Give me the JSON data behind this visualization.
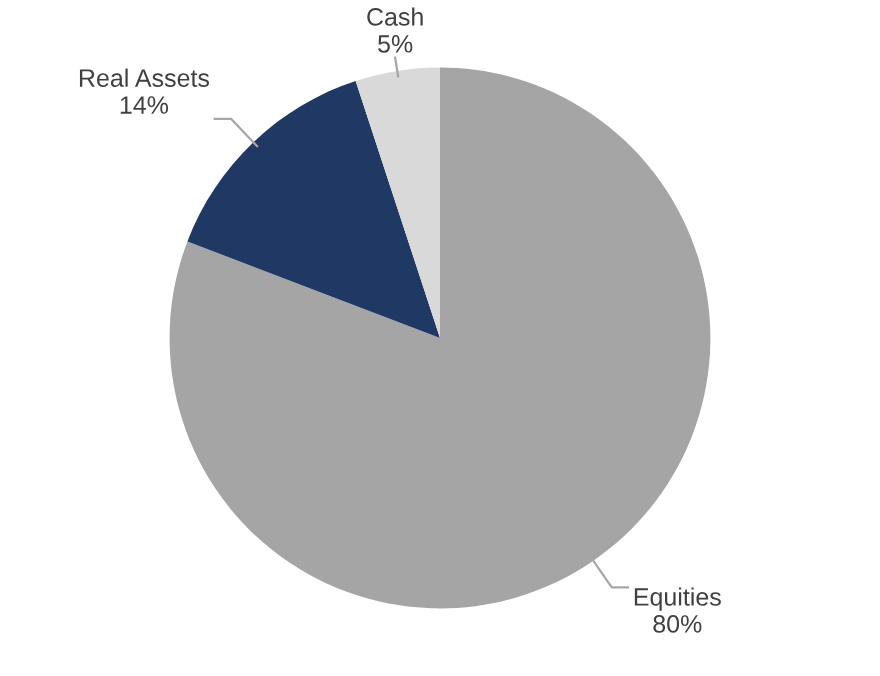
{
  "chart_data": {
    "type": "pie",
    "categories": [
      "Equities",
      "Real Assets",
      "Cash"
    ],
    "values": [
      80,
      14,
      5
    ],
    "value_labels": [
      "80%",
      "14%",
      "5%"
    ],
    "colors": [
      "#a5a5a5",
      "#1f3864",
      "#d9d9d9"
    ],
    "legend": false
  }
}
